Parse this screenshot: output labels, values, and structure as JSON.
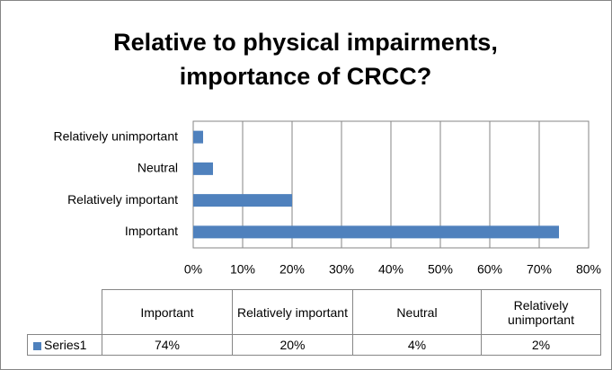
{
  "chart_data": {
    "type": "bar",
    "orientation": "horizontal",
    "title": "Relative to physical impairments, importance of CRCC?",
    "categories": [
      "Important",
      "Relatively important",
      "Neutral",
      "Relatively unimportant"
    ],
    "series": [
      {
        "name": "Series1",
        "color": "#4f81bd",
        "values": [
          74,
          20,
          4,
          2
        ],
        "value_labels": [
          "74%",
          "20%",
          "4%",
          "2%"
        ]
      }
    ],
    "xlim": [
      0,
      80
    ],
    "xticks": [
      {
        "value": 0,
        "label": "0%"
      },
      {
        "value": 10,
        "label": "10%"
      },
      {
        "value": 20,
        "label": "20%"
      },
      {
        "value": 30,
        "label": "30%"
      },
      {
        "value": 40,
        "label": "40%"
      },
      {
        "value": 50,
        "label": "50%"
      },
      {
        "value": 60,
        "label": "60%"
      },
      {
        "value": 70,
        "label": "70%"
      },
      {
        "value": 80,
        "label": "80%"
      }
    ],
    "grid": true
  }
}
